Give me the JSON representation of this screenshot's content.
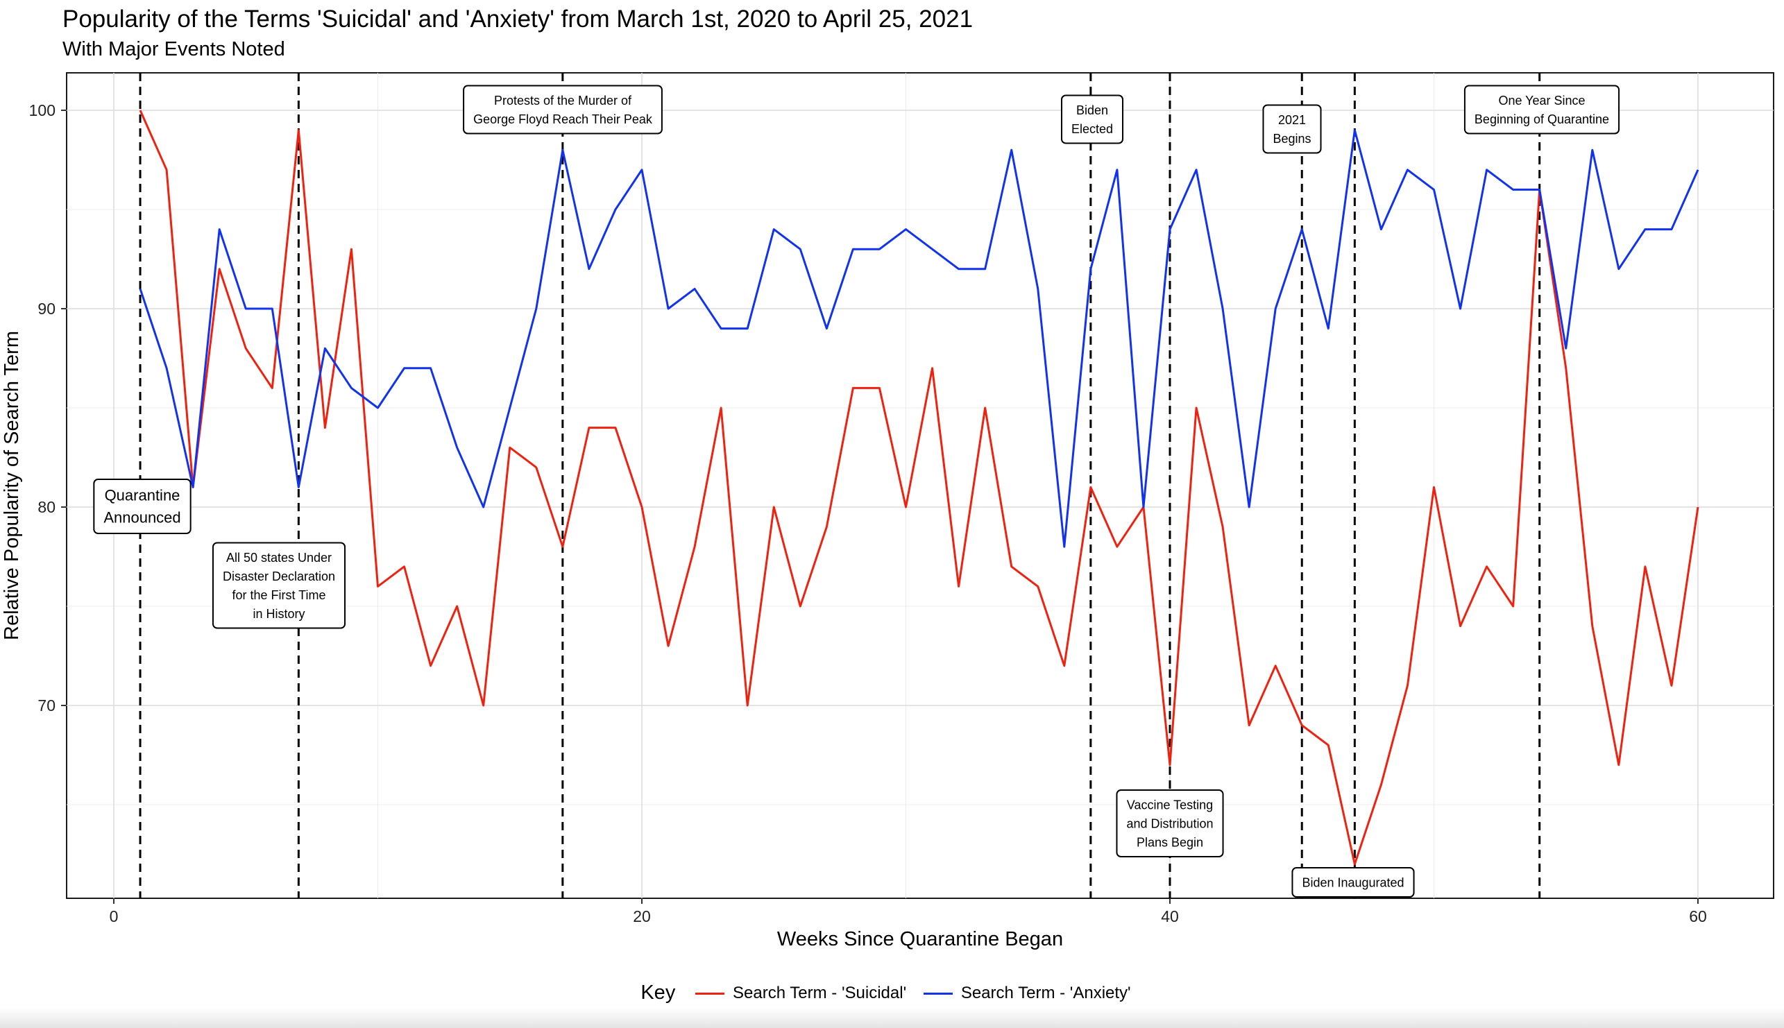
{
  "chart_data": {
    "type": "line",
    "title": "Popularity of the Terms 'Suicidal' and 'Anxiety' from March 1st, 2020 to April 25, 2021",
    "subtitle": "With Major Events Noted",
    "xlabel": "Weeks Since Quarantine Began",
    "ylabel": "Relative Popularity of Search Term",
    "xlim": [
      -2,
      63
    ],
    "ylim": [
      60.3,
      102
    ],
    "xticks": [
      0,
      20,
      40,
      60
    ],
    "yticks": [
      70,
      80,
      90,
      100
    ],
    "grid": true,
    "legend_position": "bottom",
    "legend_title": "Key",
    "x": [
      1,
      2,
      3,
      4,
      5,
      6,
      7,
      8,
      9,
      10,
      11,
      12,
      13,
      14,
      15,
      16,
      17,
      18,
      19,
      20,
      21,
      22,
      23,
      24,
      25,
      26,
      27,
      28,
      29,
      30,
      31,
      32,
      33,
      34,
      35,
      36,
      37,
      38,
      39,
      40,
      41,
      42,
      43,
      44,
      45,
      46,
      47,
      48,
      49,
      50,
      51,
      52,
      53,
      54,
      55,
      56,
      57,
      58,
      59,
      60
    ],
    "series": [
      {
        "name": "Search Term - 'Suicidal'",
        "color": "#ee2210",
        "values": [
          100,
          97,
          81,
          92,
          88,
          86,
          99,
          84,
          93,
          76,
          77,
          72,
          75,
          70,
          83,
          82,
          78,
          84,
          84,
          80,
          73,
          78,
          85,
          70,
          80,
          75,
          79,
          86,
          86,
          80,
          87,
          76,
          85,
          77,
          76,
          72,
          81,
          78,
          80,
          67,
          85,
          79,
          69,
          72,
          69,
          68,
          62,
          66,
          71,
          81,
          74,
          77,
          75,
          96,
          87,
          74,
          67,
          77,
          71,
          80
        ]
      },
      {
        "name": "Search Term - 'Anxiety'",
        "color": "#1133ee",
        "values": [
          91,
          87,
          81,
          94,
          90,
          90,
          81,
          88,
          86,
          85,
          87,
          87,
          83,
          80,
          85,
          90,
          98,
          92,
          95,
          97,
          90,
          91,
          89,
          89,
          94,
          93,
          89,
          93,
          93,
          94,
          93,
          92,
          92,
          98,
          91,
          78,
          92,
          97,
          80,
          94,
          97,
          90,
          80,
          90,
          94,
          89,
          99,
          94,
          97,
          96,
          90,
          97,
          96,
          96,
          88,
          98,
          92,
          94,
          94,
          97
        ]
      }
    ],
    "events": [
      {
        "x": 1,
        "label_lines": [
          "Quarantine",
          "Announced"
        ]
      },
      {
        "x": 7,
        "label_lines": [
          "All 50 states Under",
          "Disaster Declaration",
          "for the First Time",
          "in History"
        ]
      },
      {
        "x": 17,
        "label_lines": [
          "Protests of the Murder of",
          "George Floyd Reach Their Peak"
        ]
      },
      {
        "x": 37,
        "label_lines": [
          "Biden",
          "Elected"
        ]
      },
      {
        "x": 40,
        "label_lines": [
          "Vaccine Testing",
          "and Distribution",
          "Plans Begin"
        ]
      },
      {
        "x": 45,
        "label_lines": [
          "2021",
          "Begins"
        ]
      },
      {
        "x": 47,
        "label_lines": [
          "Biden Inaugurated"
        ]
      },
      {
        "x": 54,
        "label_lines": [
          "One Year Since",
          "Beginning of Quarantine"
        ]
      }
    ]
  }
}
